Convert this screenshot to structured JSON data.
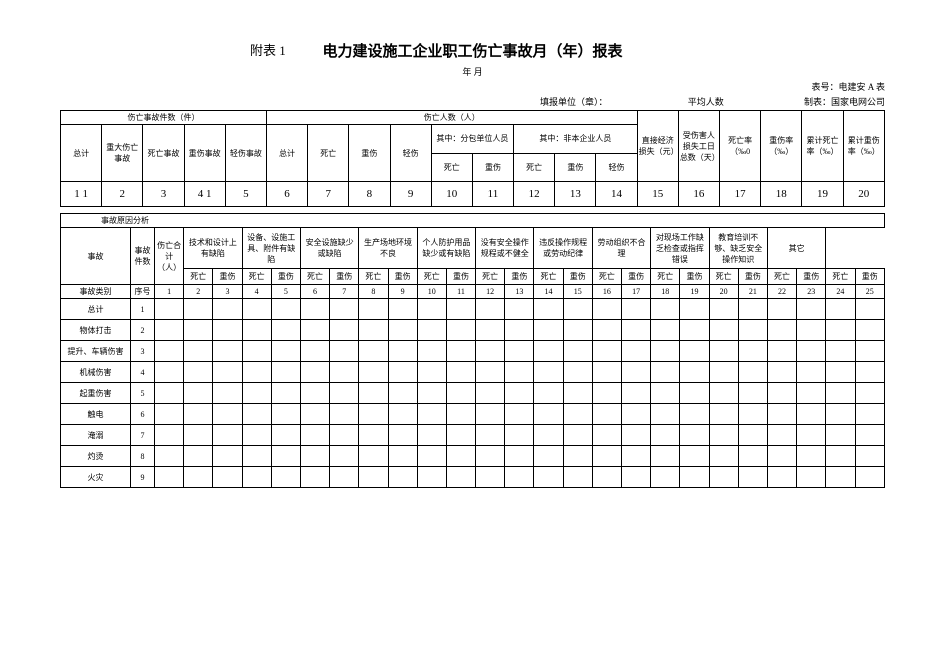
{
  "header": {
    "appendix": "附表 1",
    "title": "电力建设施工企业职工伤亡事故月（年）报表",
    "date_line": "年 月",
    "form_no": "表号：电建安 A 表",
    "filler": "填报单位（章）：",
    "avg_pop": "平均人数",
    "maker": "制表：国家电网公司"
  },
  "table1": {
    "g1": "伤亡事故件数（件）",
    "g2": "伤亡人数（人）",
    "h_total": "总计",
    "h_major": "重大伤亡事故",
    "h_death_ac": "死亡事故",
    "h_heavy_ac": "重伤事故",
    "h_light_ac": "轻伤事故",
    "h_total2": "总计",
    "h_death": "死亡",
    "h_heavy": "重伤",
    "h_light": "轻伤",
    "sub_subcon": "其中：分包单位人员",
    "sub_nonemp": "其中：非本企业人员",
    "direct_loss": "直接经济损失（元）",
    "victim_days": "受伤害人损失工日总数（天）",
    "death_rate": "死亡率（‰0",
    "heavy_rate": "重伤率（‰）",
    "cum_death_rate": "累计死亡率（‰）",
    "cum_heavy_rate": "累计重伤率（‰）",
    "nums": [
      "1 1",
      "2",
      "3",
      "4 1",
      "5",
      "6",
      "7",
      "8",
      "9",
      "10",
      "11",
      "12",
      "13",
      "14",
      "15",
      "16",
      "17",
      "18",
      "19",
      "20"
    ]
  },
  "table2": {
    "header_group": "事故原因分析",
    "col_left": "事故",
    "col_count": "事故件数",
    "col_casualty": "伤亡合计（人）",
    "causes": [
      "技术和设计上有缺陷",
      "设备、设施工具、附件有缺陷",
      "安全设施缺少或缺陷",
      "生产场地环境不良",
      "个人防护用品缺少或有缺陷",
      "没有安全操作规程或不健全",
      "违反操作规程或劳动纪律",
      "劳动组织不合理",
      "对现场工作缺乏检查或指挥错误",
      "教育培训不够、缺乏安全操作知识",
      "其它"
    ],
    "sub_death": "死亡",
    "sub_heavy": "重伤",
    "row_header_type": "事故类别",
    "row_header_seq": "序号",
    "col_nums": [
      "1",
      "2",
      "3",
      "4",
      "5",
      "6",
      "7",
      "8",
      "9",
      "10",
      "11",
      "12",
      "13",
      "14",
      "15",
      "16",
      "17",
      "18",
      "19",
      "20",
      "21",
      "22",
      "23",
      "24",
      "25"
    ],
    "categories": [
      {
        "label": "总计",
        "seq": "1"
      },
      {
        "label": "物体打击",
        "seq": "2"
      },
      {
        "label": "提升、车辆伤害",
        "seq": "3"
      },
      {
        "label": "机械伤害",
        "seq": "4"
      },
      {
        "label": "起重伤害",
        "seq": "5"
      },
      {
        "label": "触电",
        "seq": "6"
      },
      {
        "label": "淹溺",
        "seq": "7"
      },
      {
        "label": "灼烫",
        "seq": "8"
      },
      {
        "label": "火灾",
        "seq": "9"
      }
    ]
  }
}
